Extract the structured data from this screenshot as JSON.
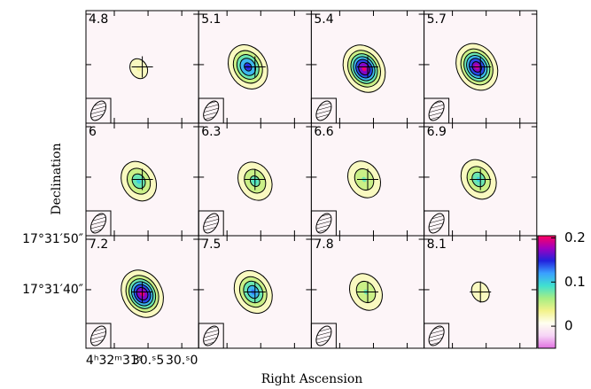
{
  "chart_data": {
    "type": "contour",
    "x_label": "Right Ascension",
    "y_label": "Declination",
    "panels": [
      {
        "label": "4.8",
        "peak": 0.03
      },
      {
        "label": "5.1",
        "peak": 0.15
      },
      {
        "label": "5.4",
        "peak": 0.2
      },
      {
        "label": "5.7",
        "peak": 0.19
      },
      {
        "label": "6",
        "peak": 0.1
      },
      {
        "label": "6.3",
        "peak": 0.09
      },
      {
        "label": "6.6",
        "peak": 0.08
      },
      {
        "label": "6.9",
        "peak": 0.1
      },
      {
        "label": "7.2",
        "peak": 0.2
      },
      {
        "label": "7.5",
        "peak": 0.13
      },
      {
        "label": "7.8",
        "peak": 0.08
      },
      {
        "label": "8.1",
        "peak": 0.03
      }
    ],
    "contour_levels": [
      0.02,
      0.05,
      0.08,
      0.11,
      0.14,
      0.17
    ],
    "xlim": [
      31.42,
      29.75
    ],
    "xticks": [
      {
        "value": 31,
        "label": "4ʰ32ᵐ31ˢ"
      },
      {
        "value": 30.5,
        "label": "30.ˢ5"
      },
      {
        "value": 30,
        "label": "30.ˢ0"
      }
    ],
    "ylim": [
      28.4,
      50.7
    ],
    "yticks": [
      {
        "value": 40,
        "label": "17°31′40″"
      },
      {
        "value": 50,
        "label": "17°31′50″"
      }
    ],
    "colorbar": {
      "lim": [
        -0.05,
        0.205
      ],
      "ticks": [
        0,
        0.1,
        0.2
      ],
      "colors": [
        "#e070e0",
        "#f6d4f6",
        "#fffff0",
        "#f2f28a",
        "#a6ee84",
        "#40e0d0",
        "#3aa0ff",
        "#2222dd",
        "#a000c0",
        "#ff0060"
      ]
    }
  }
}
